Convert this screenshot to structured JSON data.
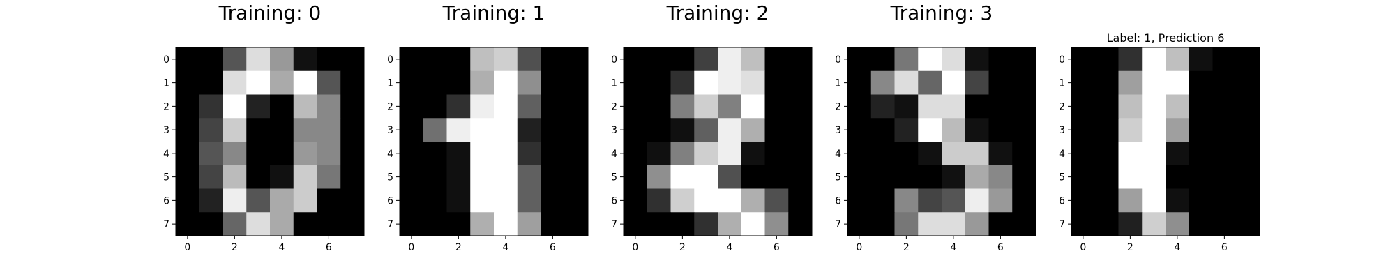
{
  "chart_data": [
    {
      "type": "heatmap",
      "title": "Training: 0",
      "colormap": "gray",
      "xticks": [
        0,
        2,
        4,
        6
      ],
      "yticks": [
        0,
        1,
        2,
        3,
        4,
        5,
        6,
        7
      ],
      "xlim": [
        -0.5,
        7.5
      ],
      "ylim": [
        7.5,
        -0.5
      ],
      "values": [
        [
          0,
          0,
          5,
          13,
          9,
          1,
          0,
          0
        ],
        [
          0,
          0,
          13,
          15,
          10,
          15,
          5,
          0
        ],
        [
          0,
          3,
          15,
          2,
          0,
          11,
          8,
          0
        ],
        [
          0,
          4,
          12,
          0,
          0,
          8,
          8,
          0
        ],
        [
          0,
          5,
          8,
          0,
          0,
          9,
          8,
          0
        ],
        [
          0,
          4,
          11,
          0,
          1,
          12,
          7,
          0
        ],
        [
          0,
          2,
          14,
          5,
          10,
          12,
          0,
          0
        ],
        [
          0,
          0,
          6,
          13,
          10,
          0,
          0,
          0
        ]
      ]
    },
    {
      "type": "heatmap",
      "title": "Training: 1",
      "colormap": "gray",
      "xticks": [
        0,
        2,
        4,
        6
      ],
      "yticks": [
        0,
        1,
        2,
        3,
        4,
        5,
        6,
        7
      ],
      "xlim": [
        -0.5,
        7.5
      ],
      "ylim": [
        7.5,
        -0.5
      ],
      "values": [
        [
          0,
          0,
          0,
          12,
          13,
          5,
          0,
          0
        ],
        [
          0,
          0,
          0,
          11,
          16,
          9,
          0,
          0
        ],
        [
          0,
          0,
          3,
          15,
          16,
          6,
          0,
          0
        ],
        [
          0,
          7,
          15,
          16,
          16,
          2,
          0,
          0
        ],
        [
          0,
          0,
          1,
          16,
          16,
          3,
          0,
          0
        ],
        [
          0,
          0,
          1,
          16,
          16,
          6,
          0,
          0
        ],
        [
          0,
          0,
          1,
          16,
          16,
          6,
          0,
          0
        ],
        [
          0,
          0,
          0,
          11,
          16,
          10,
          0,
          0
        ]
      ]
    },
    {
      "type": "heatmap",
      "title": "Training: 2",
      "colormap": "gray",
      "xticks": [
        0,
        2,
        4,
        6
      ],
      "yticks": [
        0,
        1,
        2,
        3,
        4,
        5,
        6,
        7
      ],
      "xlim": [
        -0.5,
        7.5
      ],
      "ylim": [
        7.5,
        -0.5
      ],
      "values": [
        [
          0,
          0,
          0,
          4,
          15,
          12,
          0,
          0
        ],
        [
          0,
          0,
          3,
          16,
          15,
          14,
          0,
          0
        ],
        [
          0,
          0,
          8,
          13,
          8,
          16,
          0,
          0
        ],
        [
          0,
          0,
          1,
          6,
          15,
          11,
          0,
          0
        ],
        [
          0,
          1,
          8,
          13,
          15,
          1,
          0,
          0
        ],
        [
          0,
          9,
          16,
          16,
          5,
          0,
          0,
          0
        ],
        [
          0,
          3,
          13,
          16,
          16,
          11,
          5,
          0
        ],
        [
          0,
          0,
          0,
          3,
          11,
          16,
          9,
          0
        ]
      ]
    },
    {
      "type": "heatmap",
      "title": "Training: 3",
      "colormap": "gray",
      "xticks": [
        0,
        2,
        4,
        6
      ],
      "yticks": [
        0,
        1,
        2,
        3,
        4,
        5,
        6,
        7
      ],
      "xlim": [
        -0.5,
        7.5
      ],
      "ylim": [
        7.5,
        -0.5
      ],
      "values": [
        [
          0,
          0,
          7,
          15,
          13,
          1,
          0,
          0
        ],
        [
          0,
          8,
          13,
          6,
          15,
          4,
          0,
          0
        ],
        [
          0,
          2,
          1,
          13,
          13,
          0,
          0,
          0
        ],
        [
          0,
          0,
          2,
          15,
          11,
          1,
          0,
          0
        ],
        [
          0,
          0,
          0,
          1,
          12,
          12,
          1,
          0
        ],
        [
          0,
          0,
          0,
          0,
          1,
          10,
          8,
          0
        ],
        [
          0,
          0,
          8,
          4,
          5,
          14,
          9,
          0
        ],
        [
          0,
          0,
          7,
          13,
          13,
          9,
          0,
          0
        ]
      ]
    },
    {
      "type": "heatmap",
      "title": "Label: 1, Prediction 6",
      "colormap": "gray",
      "xticks": [
        0,
        2,
        4,
        6
      ],
      "yticks": [
        0,
        1,
        2,
        3,
        4,
        5,
        6,
        7
      ],
      "xlim": [
        -0.5,
        7.5
      ],
      "ylim": [
        7.5,
        -0.5
      ],
      "values": [
        [
          0,
          0,
          3,
          16,
          12,
          1,
          0,
          0
        ],
        [
          0,
          0,
          10,
          16,
          16,
          0,
          0,
          0
        ],
        [
          0,
          0,
          12,
          16,
          12,
          0,
          0,
          0
        ],
        [
          0,
          0,
          13,
          16,
          10,
          0,
          0,
          0
        ],
        [
          0,
          0,
          16,
          16,
          1,
          0,
          0,
          0
        ],
        [
          0,
          0,
          16,
          16,
          0,
          0,
          0,
          0
        ],
        [
          0,
          0,
          10,
          16,
          1,
          0,
          0,
          0
        ],
        [
          0,
          0,
          2,
          13,
          9,
          0,
          0,
          0
        ]
      ]
    }
  ]
}
